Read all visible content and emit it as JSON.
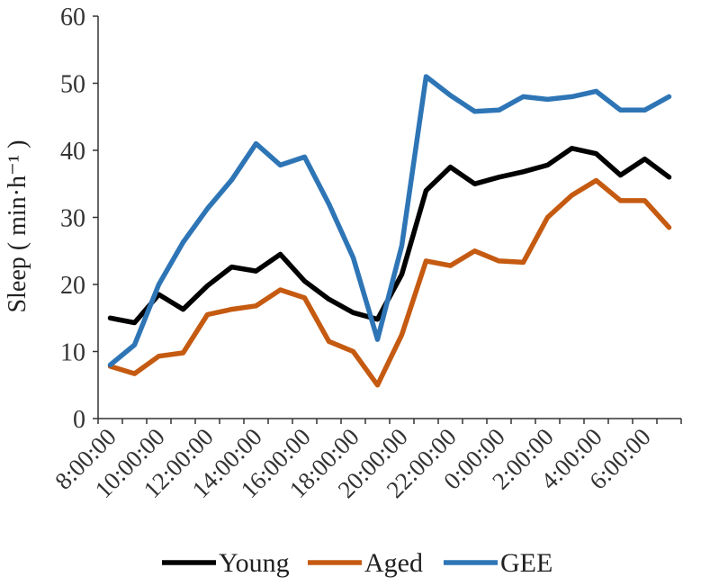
{
  "chart_data": {
    "type": "line",
    "ylabel": "Sleep ( min·h⁻¹ )",
    "xlabel": "",
    "ylim": [
      0,
      60
    ],
    "yticks": [
      0,
      10,
      20,
      30,
      40,
      50,
      60
    ],
    "x": [
      "8:00:00",
      "9:00:00",
      "10:00:00",
      "11:00:00",
      "12:00:00",
      "13:00:00",
      "14:00:00",
      "15:00:00",
      "16:00:00",
      "17:00:00",
      "18:00:00",
      "19:00:00",
      "20:00:00",
      "21:00:00",
      "22:00:00",
      "23:00:00",
      "0:00:00",
      "1:00:00",
      "2:00:00",
      "3:00:00",
      "4:00:00",
      "5:00:00",
      "6:00:00",
      "7:00:00"
    ],
    "x_tick_labels": [
      "8:00:00",
      "10:00:00",
      "12:00:00",
      "14:00:00",
      "16:00:00",
      "18:00:00",
      "20:00:00",
      "22:00:00",
      "0:00:00",
      "2:00:00",
      "4:00:00",
      "6:00:00"
    ],
    "x_tick_labels_text": "8:00:00 10:00:00 12:00:00 14:00:00 16:00:00 18:00:00 20:00:00 22:00:00 0:00:00 2:00:00 4:00:00 6:00:00",
    "grid": false,
    "legend_position": "bottom",
    "series": [
      {
        "name": "Young",
        "color": "#000000",
        "values": [
          15.0,
          14.3,
          18.5,
          16.3,
          19.8,
          22.6,
          22.0,
          24.5,
          20.5,
          17.8,
          15.8,
          14.8,
          21.5,
          34.0,
          37.5,
          35.0,
          36.0,
          36.8,
          37.8,
          40.3,
          39.5,
          36.3,
          38.7,
          36.0
        ]
      },
      {
        "name": "Aged",
        "color": "#C55A11",
        "values": [
          7.8,
          6.7,
          9.3,
          9.8,
          15.5,
          16.3,
          16.8,
          19.2,
          18.0,
          11.5,
          10.0,
          5.0,
          12.5,
          23.5,
          22.8,
          25.0,
          23.5,
          23.3,
          30.0,
          33.3,
          35.5,
          32.5,
          32.5,
          28.5
        ]
      },
      {
        "name": "GEE",
        "color": "#2E75B6",
        "values": [
          8.0,
          11.0,
          20.0,
          26.3,
          31.3,
          35.6,
          41.0,
          37.8,
          39.0,
          32.0,
          24.0,
          11.8,
          25.8,
          51.0,
          48.2,
          45.8,
          46.0,
          48.0,
          47.6,
          48.0,
          48.8,
          46.0,
          46.0,
          48.0
        ]
      }
    ]
  }
}
